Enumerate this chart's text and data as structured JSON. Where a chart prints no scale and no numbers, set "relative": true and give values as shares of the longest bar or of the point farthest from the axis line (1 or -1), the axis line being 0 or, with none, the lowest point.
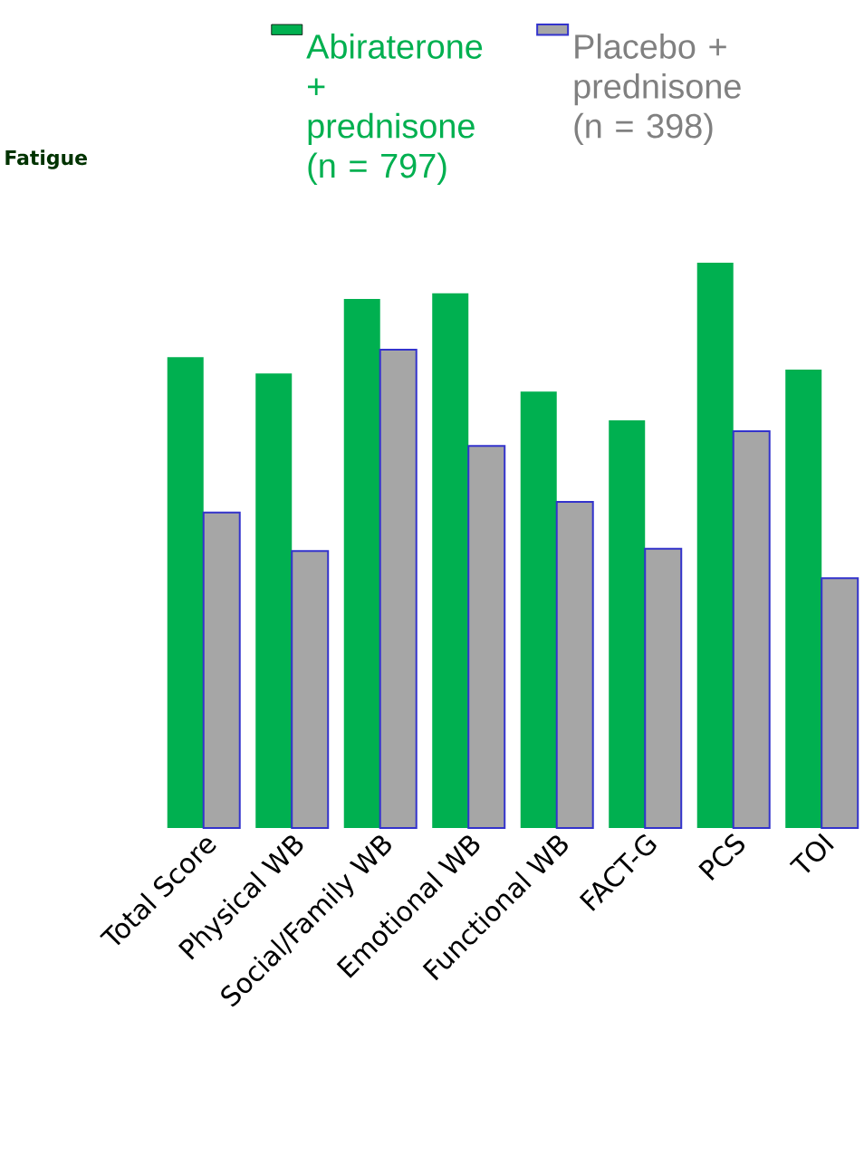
{
  "chart_data": {
    "type": "bar",
    "relative": true,
    "categories": [
      "Total Score",
      "Physical WB",
      "Social/Family WB",
      "Emotional WB",
      "Functional WB",
      "FACT-G",
      "PCS",
      "TOI"
    ],
    "series": [
      {
        "name": "Abiraterone + prednisone (n = 797)",
        "color": "#00b050",
        "values": [
          0.833,
          0.804,
          0.936,
          0.946,
          0.772,
          0.721,
          1,
          0.811
        ]
      },
      {
        "name": "Placebo + prednisone (n = 398)",
        "color": "#a6a6a6",
        "values": [
          0.558,
          0.49,
          0.846,
          0.676,
          0.577,
          0.494,
          0.702,
          0.442
        ]
      }
    ],
    "legend": "top",
    "annotations": [
      "Fatigue"
    ]
  }
}
